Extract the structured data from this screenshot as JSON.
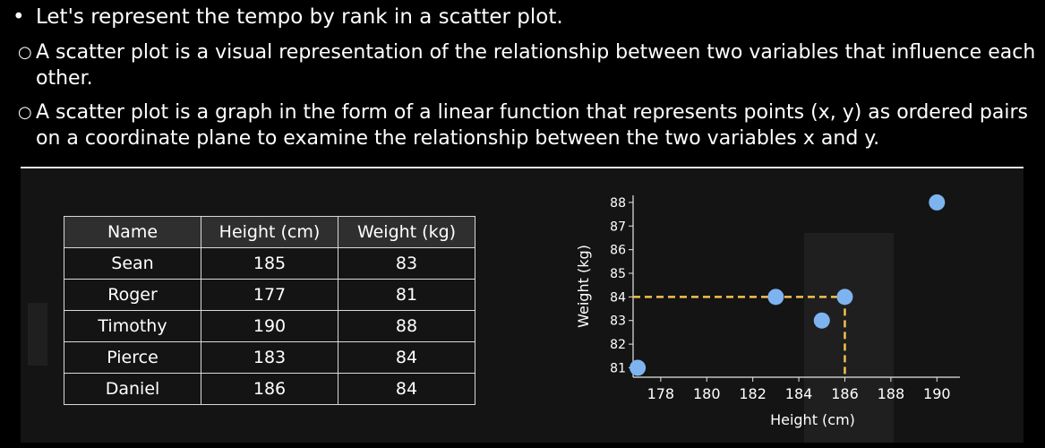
{
  "bullets": {
    "main": "Let's represent the tempo by rank in a scatter plot.",
    "sub1": "A scatter plot is a visual representation of the relationship between two variables that influence each other.",
    "sub2": "A scatter plot is a graph in the form of a linear function that represents points (x, y) as ordered pairs on a coordinate plane to examine the relationship between the two variables x and y."
  },
  "table": {
    "headers": [
      "Name",
      "Height (cm)",
      "Weight (kg)"
    ],
    "rows": [
      [
        "Sean",
        "185",
        "83"
      ],
      [
        "Roger",
        "177",
        "81"
      ],
      [
        "Timothy",
        "190",
        "88"
      ],
      [
        "Pierce",
        "183",
        "84"
      ],
      [
        "Daniel",
        "186",
        "84"
      ]
    ]
  },
  "chart_data": {
    "type": "scatter",
    "xlabel": "Height (cm)",
    "ylabel": "Weight (kg)",
    "xlim": [
      176.8,
      191
    ],
    "ylim": [
      80.6,
      88.3
    ],
    "xticks": [
      178,
      180,
      182,
      184,
      186,
      188,
      190
    ],
    "yticks": [
      81,
      82,
      83,
      84,
      85,
      86,
      87,
      88
    ],
    "points": [
      {
        "x": 185,
        "y": 83
      },
      {
        "x": 177,
        "y": 81
      },
      {
        "x": 190,
        "y": 88
      },
      {
        "x": 183,
        "y": 84
      },
      {
        "x": 186,
        "y": 84
      }
    ],
    "guide": {
      "x": 186,
      "y": 84
    },
    "point_color": "#7db4f0",
    "guide_color": "#f2c14e"
  }
}
